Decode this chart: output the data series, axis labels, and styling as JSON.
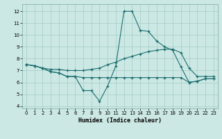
{
  "xlabel": "Humidex (Indice chaleur)",
  "background_color": "#cce8e4",
  "grid_color": "#aad0cc",
  "line_color": "#1a6e6e",
  "xlim": [
    -0.5,
    23.5
  ],
  "ylim": [
    3.8,
    12.6
  ],
  "yticks": [
    4,
    5,
    6,
    7,
    8,
    9,
    10,
    11,
    12
  ],
  "xticks": [
    0,
    1,
    2,
    3,
    4,
    5,
    6,
    7,
    8,
    9,
    10,
    11,
    12,
    13,
    14,
    15,
    16,
    17,
    18,
    19,
    20,
    21,
    22,
    23
  ],
  "line1_x": [
    0,
    1,
    2,
    3,
    4,
    5,
    6,
    7,
    8,
    9,
    10,
    11,
    12,
    13,
    14,
    15,
    16,
    17,
    18,
    19,
    20,
    21,
    22,
    23
  ],
  "line1_y": [
    7.5,
    7.4,
    7.2,
    7.1,
    7.1,
    7.0,
    7.0,
    7.0,
    7.1,
    7.2,
    7.5,
    7.7,
    8.0,
    8.2,
    8.4,
    8.6,
    8.7,
    8.8,
    8.8,
    8.5,
    7.2,
    6.5,
    6.5,
    6.5
  ],
  "line2_x": [
    0,
    1,
    2,
    3,
    4,
    5,
    6,
    7,
    8,
    9,
    10,
    11,
    12,
    13,
    14,
    15,
    16,
    17,
    18,
    19,
    20,
    21,
    22,
    23
  ],
  "line2_y": [
    7.5,
    7.4,
    7.2,
    6.9,
    6.8,
    6.5,
    6.5,
    5.3,
    5.3,
    4.4,
    5.7,
    7.4,
    12.0,
    12.0,
    10.4,
    10.3,
    9.5,
    9.0,
    8.7,
    7.3,
    6.0,
    6.1,
    6.3,
    6.3
  ],
  "line3_x": [
    0,
    1,
    2,
    3,
    4,
    5,
    6,
    7,
    8,
    9,
    10,
    11,
    12,
    13,
    14,
    15,
    16,
    17,
    18,
    19,
    20,
    21,
    22,
    23
  ],
  "line3_y": [
    7.5,
    7.4,
    7.2,
    6.9,
    6.8,
    6.5,
    6.5,
    6.4,
    6.4,
    6.4,
    6.4,
    6.4,
    6.4,
    6.4,
    6.4,
    6.4,
    6.4,
    6.4,
    6.4,
    6.4,
    6.0,
    6.1,
    6.3,
    6.3
  ]
}
